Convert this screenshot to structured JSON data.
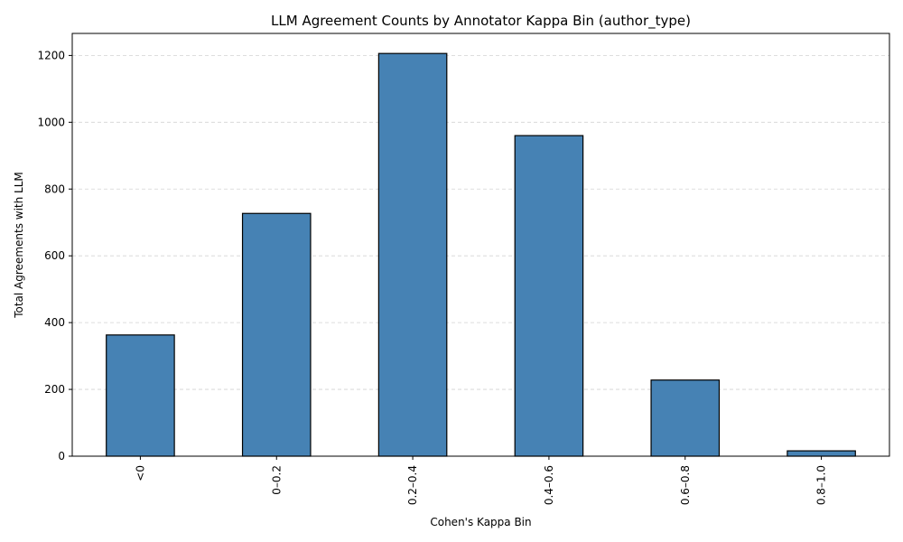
{
  "chart_data": {
    "type": "bar",
    "title": "LLM Agreement Counts by Annotator Kappa Bin (author_type)",
    "xlabel": "Cohen's Kappa Bin",
    "ylabel": "Total Agreements with LLM",
    "categories": [
      "<0",
      "0–0.2",
      "0.2–0.4",
      "0.4–0.6",
      "0.6–0.8",
      "0.8–1.0"
    ],
    "values": [
      363,
      727,
      1206,
      960,
      228,
      16
    ],
    "ylim": [
      0,
      1266
    ],
    "yticks": [
      0,
      200,
      400,
      600,
      800,
      1000,
      1200
    ],
    "grid": "y-dashed",
    "colors": {
      "bar": "#4682b4",
      "bar_edge": "#000000",
      "grid": "#d3d3d3"
    }
  }
}
